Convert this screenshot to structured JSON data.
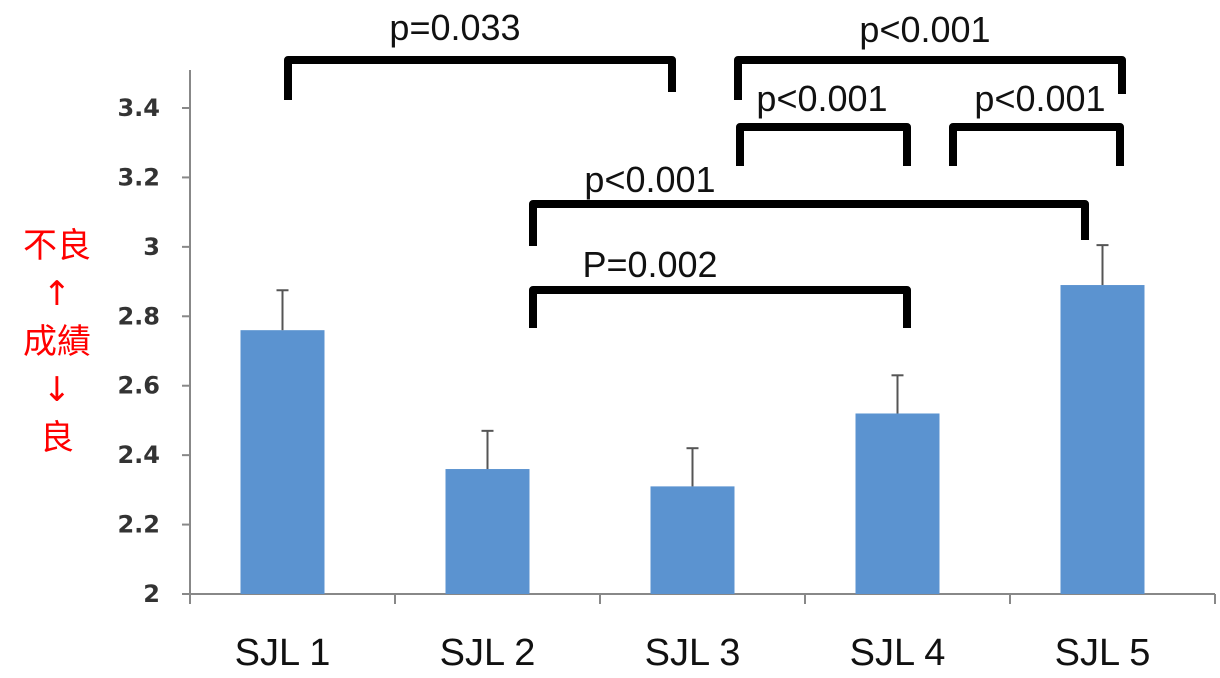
{
  "chart_data": {
    "type": "bar",
    "categories": [
      "SJL 1",
      "SJL 2",
      "SJL 3",
      "SJL 4",
      "SJL 5"
    ],
    "values": [
      2.76,
      2.36,
      2.31,
      2.52,
      2.89
    ],
    "error_upper": [
      2.875,
      2.47,
      2.42,
      2.63,
      3.005
    ],
    "ylim": [
      2,
      3.5
    ],
    "yticks": [
      2,
      2.2,
      2.4,
      2.6,
      2.8,
      3,
      3.2,
      3.4
    ],
    "ytick_labels": [
      "2",
      "2.2",
      "2.4",
      "2.6",
      "2.8",
      "3",
      "3.2",
      "3.4"
    ],
    "grid": false,
    "bar_color": "#5b93d0",
    "ylabel_lines": [
      "不良",
      "↑",
      "成績",
      "↓",
      "良"
    ],
    "ylabel_color": "#ff0000",
    "significance": [
      {
        "from": "SJL 1",
        "to": "SJL 3",
        "label": "p=0.033"
      },
      {
        "from": "SJL 3",
        "to": "SJL 5",
        "label": "p<0.001"
      },
      {
        "from": "SJL 3",
        "to": "SJL 4",
        "label": "p<0.001"
      },
      {
        "from": "SJL 4",
        "to": "SJL 5",
        "label": "p<0.001"
      },
      {
        "from": "SJL 2",
        "to": "SJL 5",
        "label": "p<0.001"
      },
      {
        "from": "SJL 2",
        "to": "SJL 4",
        "label": "P=0.002"
      }
    ]
  }
}
